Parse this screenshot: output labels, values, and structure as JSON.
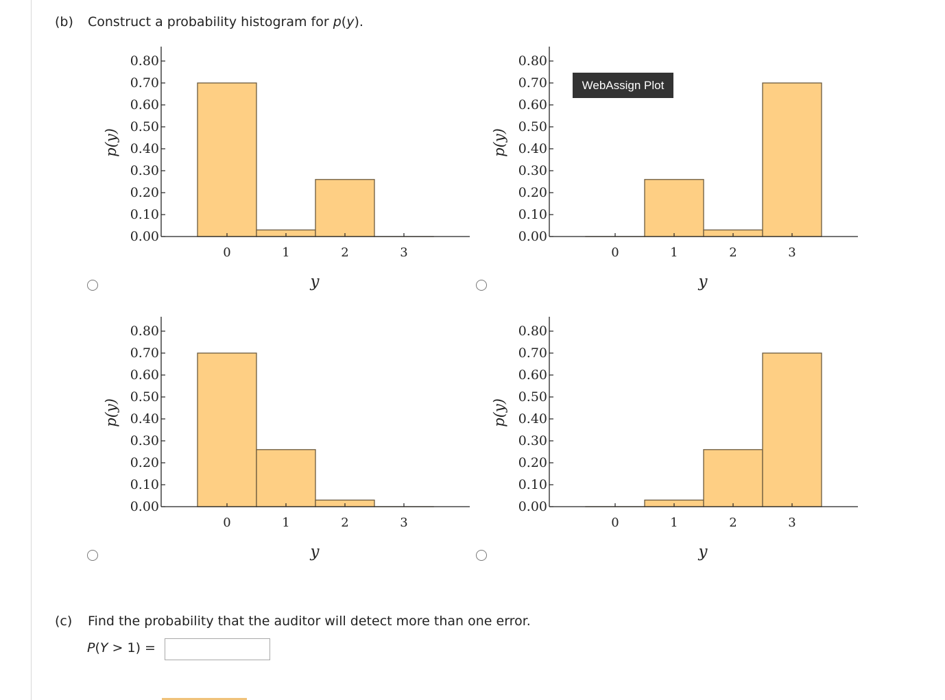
{
  "part_b": {
    "label": "(b)",
    "text_before": "Construct a probability histogram for ",
    "func_p": "p",
    "func_var": "y",
    "text_after": ")."
  },
  "tooltip": {
    "text": "WebAssign Plot"
  },
  "chart_data": [
    {
      "type": "bar",
      "position": "top-left",
      "categories": [
        "0",
        "1",
        "2",
        "3"
      ],
      "values": [
        0.7,
        0.03,
        0.26,
        0.0
      ],
      "yticks": [
        "0.00",
        "0.10",
        "0.20",
        "0.30",
        "0.40",
        "0.50",
        "0.60",
        "0.70",
        "0.80"
      ],
      "xlabel": "y",
      "ylabel": "p(y)",
      "ylim": [
        0,
        0.8
      ],
      "bar_color": "#fecf84",
      "edge_color": "#6b5a3e"
    },
    {
      "type": "bar",
      "position": "top-right",
      "categories": [
        "0",
        "1",
        "2",
        "3"
      ],
      "values": [
        0.0,
        0.26,
        0.03,
        0.7
      ],
      "yticks": [
        "0.00",
        "0.10",
        "0.20",
        "0.30",
        "0.40",
        "0.50",
        "0.60",
        "0.70",
        "0.80"
      ],
      "xlabel": "y",
      "ylabel": "p(y)",
      "ylim": [
        0,
        0.8
      ],
      "bar_color": "#fecf84",
      "edge_color": "#6b5a3e"
    },
    {
      "type": "bar",
      "position": "bottom-left",
      "categories": [
        "0",
        "1",
        "2",
        "3"
      ],
      "values": [
        0.7,
        0.26,
        0.03,
        0.0
      ],
      "yticks": [
        "0.00",
        "0.10",
        "0.20",
        "0.30",
        "0.40",
        "0.50",
        "0.60",
        "0.70",
        "0.80"
      ],
      "xlabel": "y",
      "ylabel": "p(y)",
      "ylim": [
        0,
        0.8
      ],
      "bar_color": "#fecf84",
      "edge_color": "#6b5a3e"
    },
    {
      "type": "bar",
      "position": "bottom-right",
      "categories": [
        "0",
        "1",
        "2",
        "3"
      ],
      "values": [
        0.0,
        0.03,
        0.26,
        0.7
      ],
      "yticks": [
        "0.00",
        "0.10",
        "0.20",
        "0.30",
        "0.40",
        "0.50",
        "0.60",
        "0.70",
        "0.80"
      ],
      "xlabel": "y",
      "ylabel": "p(y)",
      "ylim": [
        0,
        0.8
      ],
      "bar_color": "#fecf84",
      "edge_color": "#6b5a3e"
    }
  ],
  "part_c": {
    "label": "(c)",
    "text": "Find the probability that the auditor will detect more than one error.",
    "answer_p": "P",
    "answer_y": "Y",
    "answer_rest": " > 1)  =",
    "answer_value": ""
  }
}
